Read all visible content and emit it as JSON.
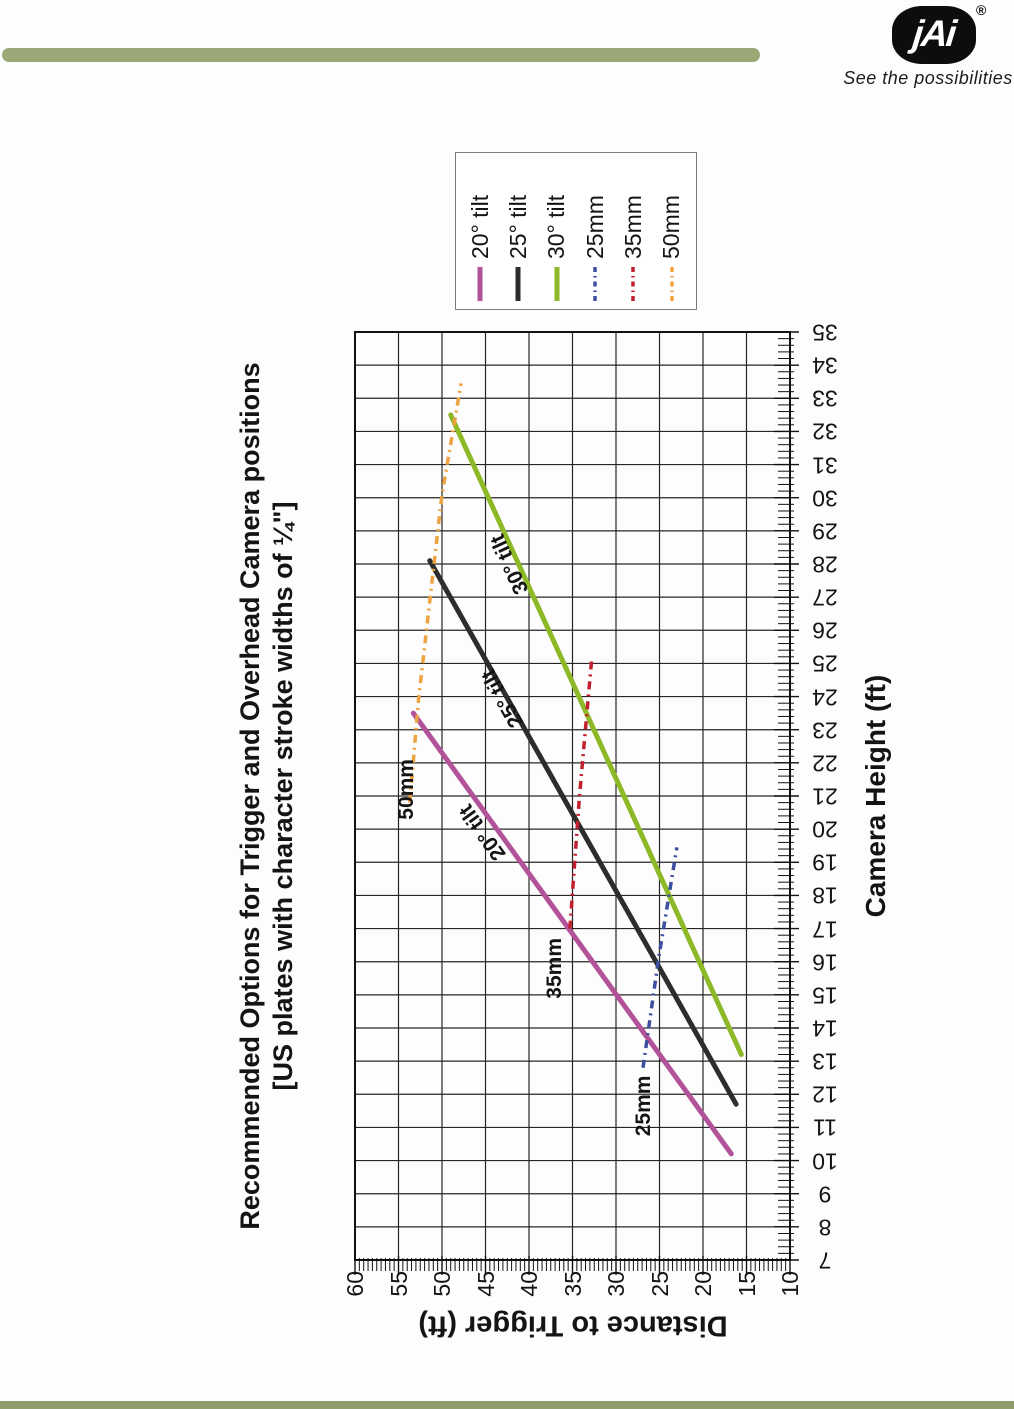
{
  "header": {
    "bar_color": "#9aa878",
    "logo_text": "jAi",
    "registered_mark": "®",
    "tagline": "See the possibilities"
  },
  "footer": {
    "bar_color": "#8f9c6e"
  },
  "chart_data": {
    "type": "line",
    "title": "Recommended Options for Trigger and Overhead Camera positions",
    "subtitle": "[US plates with character stroke widths of ¼\"]",
    "xlabel": "Camera Height (ft)",
    "ylabel": "Distance to Trigger (ft)",
    "xlim": [
      7,
      35
    ],
    "ylim": [
      10,
      60
    ],
    "x_major_step": 1,
    "x_minor_step": 0.2,
    "y_major_step": 5,
    "y_minor_step": 0.5,
    "grid": "vertical every 1 ft, horizontal every 5 ft",
    "legend_position": "right",
    "orientation_note": "entire chart rotated 90° counter-clockwise on the page",
    "x_tick_labels": [
      "7",
      "8",
      "9",
      "10",
      "11",
      "12",
      "13",
      "14",
      "15",
      "16",
      "17",
      "18",
      "19",
      "20",
      "21",
      "22",
      "23",
      "24",
      "25",
      "26",
      "27",
      "28",
      "29",
      "30",
      "31",
      "32",
      "33",
      "34",
      "35"
    ],
    "y_tick_labels": [
      "10",
      "15",
      "20",
      "25",
      "30",
      "35",
      "40",
      "45",
      "50",
      "55",
      "60"
    ],
    "series": [
      {
        "name": "20° tilt",
        "color": "#b2539a",
        "style": "solid",
        "points": [
          [
            10.2,
            16.75
          ],
          [
            14,
            27.2
          ],
          [
            18,
            38.2
          ],
          [
            23.5,
            53.3
          ]
        ]
      },
      {
        "name": "25° tilt",
        "color": "#2d2d2d",
        "style": "solid",
        "points": [
          [
            11.7,
            16.2
          ],
          [
            16,
            25.4
          ],
          [
            22,
            38.3
          ],
          [
            28.1,
            51.4
          ]
        ]
      },
      {
        "name": "30° tilt",
        "color": "#8db827",
        "style": "solid",
        "points": [
          [
            13.2,
            15.6
          ],
          [
            18,
            23.9
          ],
          [
            25,
            36.0
          ],
          [
            32.5,
            49.0
          ]
        ]
      },
      {
        "name": "25mm",
        "color": "#3c4e9e",
        "style": "dashdot",
        "points": [
          [
            12.8,
            26.9
          ],
          [
            16.1,
            25.1
          ],
          [
            19.45,
            23.0
          ]
        ]
      },
      {
        "name": "35mm",
        "color": "#c2202e",
        "style": "dashdot",
        "points": [
          [
            17.0,
            35.3
          ],
          [
            21,
            34.2
          ],
          [
            25.1,
            32.8
          ]
        ]
      },
      {
        "name": "50mm",
        "color": "#eda33f",
        "style": "dashdot",
        "points": [
          [
            20.8,
            53.7
          ],
          [
            23.9,
            52.7
          ],
          [
            30.1,
            50.0
          ],
          [
            33.45,
            47.8
          ]
        ]
      }
    ],
    "annotations": [
      {
        "text": "20° tilt",
        "x": 19.9,
        "y": 45.3,
        "angle": -35.8
      },
      {
        "text": "25° tilt",
        "x": 23.95,
        "y": 43.0,
        "angle": -29.4
      },
      {
        "text": "30° tilt",
        "x": 28.0,
        "y": 42.2,
        "angle": -24.5
      },
      {
        "text": "50mm",
        "x": 21.2,
        "y": 54.0,
        "angle": 0
      },
      {
        "text": "35mm",
        "x": 15.8,
        "y": 37.0,
        "angle": 0
      },
      {
        "text": "25mm",
        "x": 11.65,
        "y": 26.8,
        "angle": 0
      }
    ]
  }
}
